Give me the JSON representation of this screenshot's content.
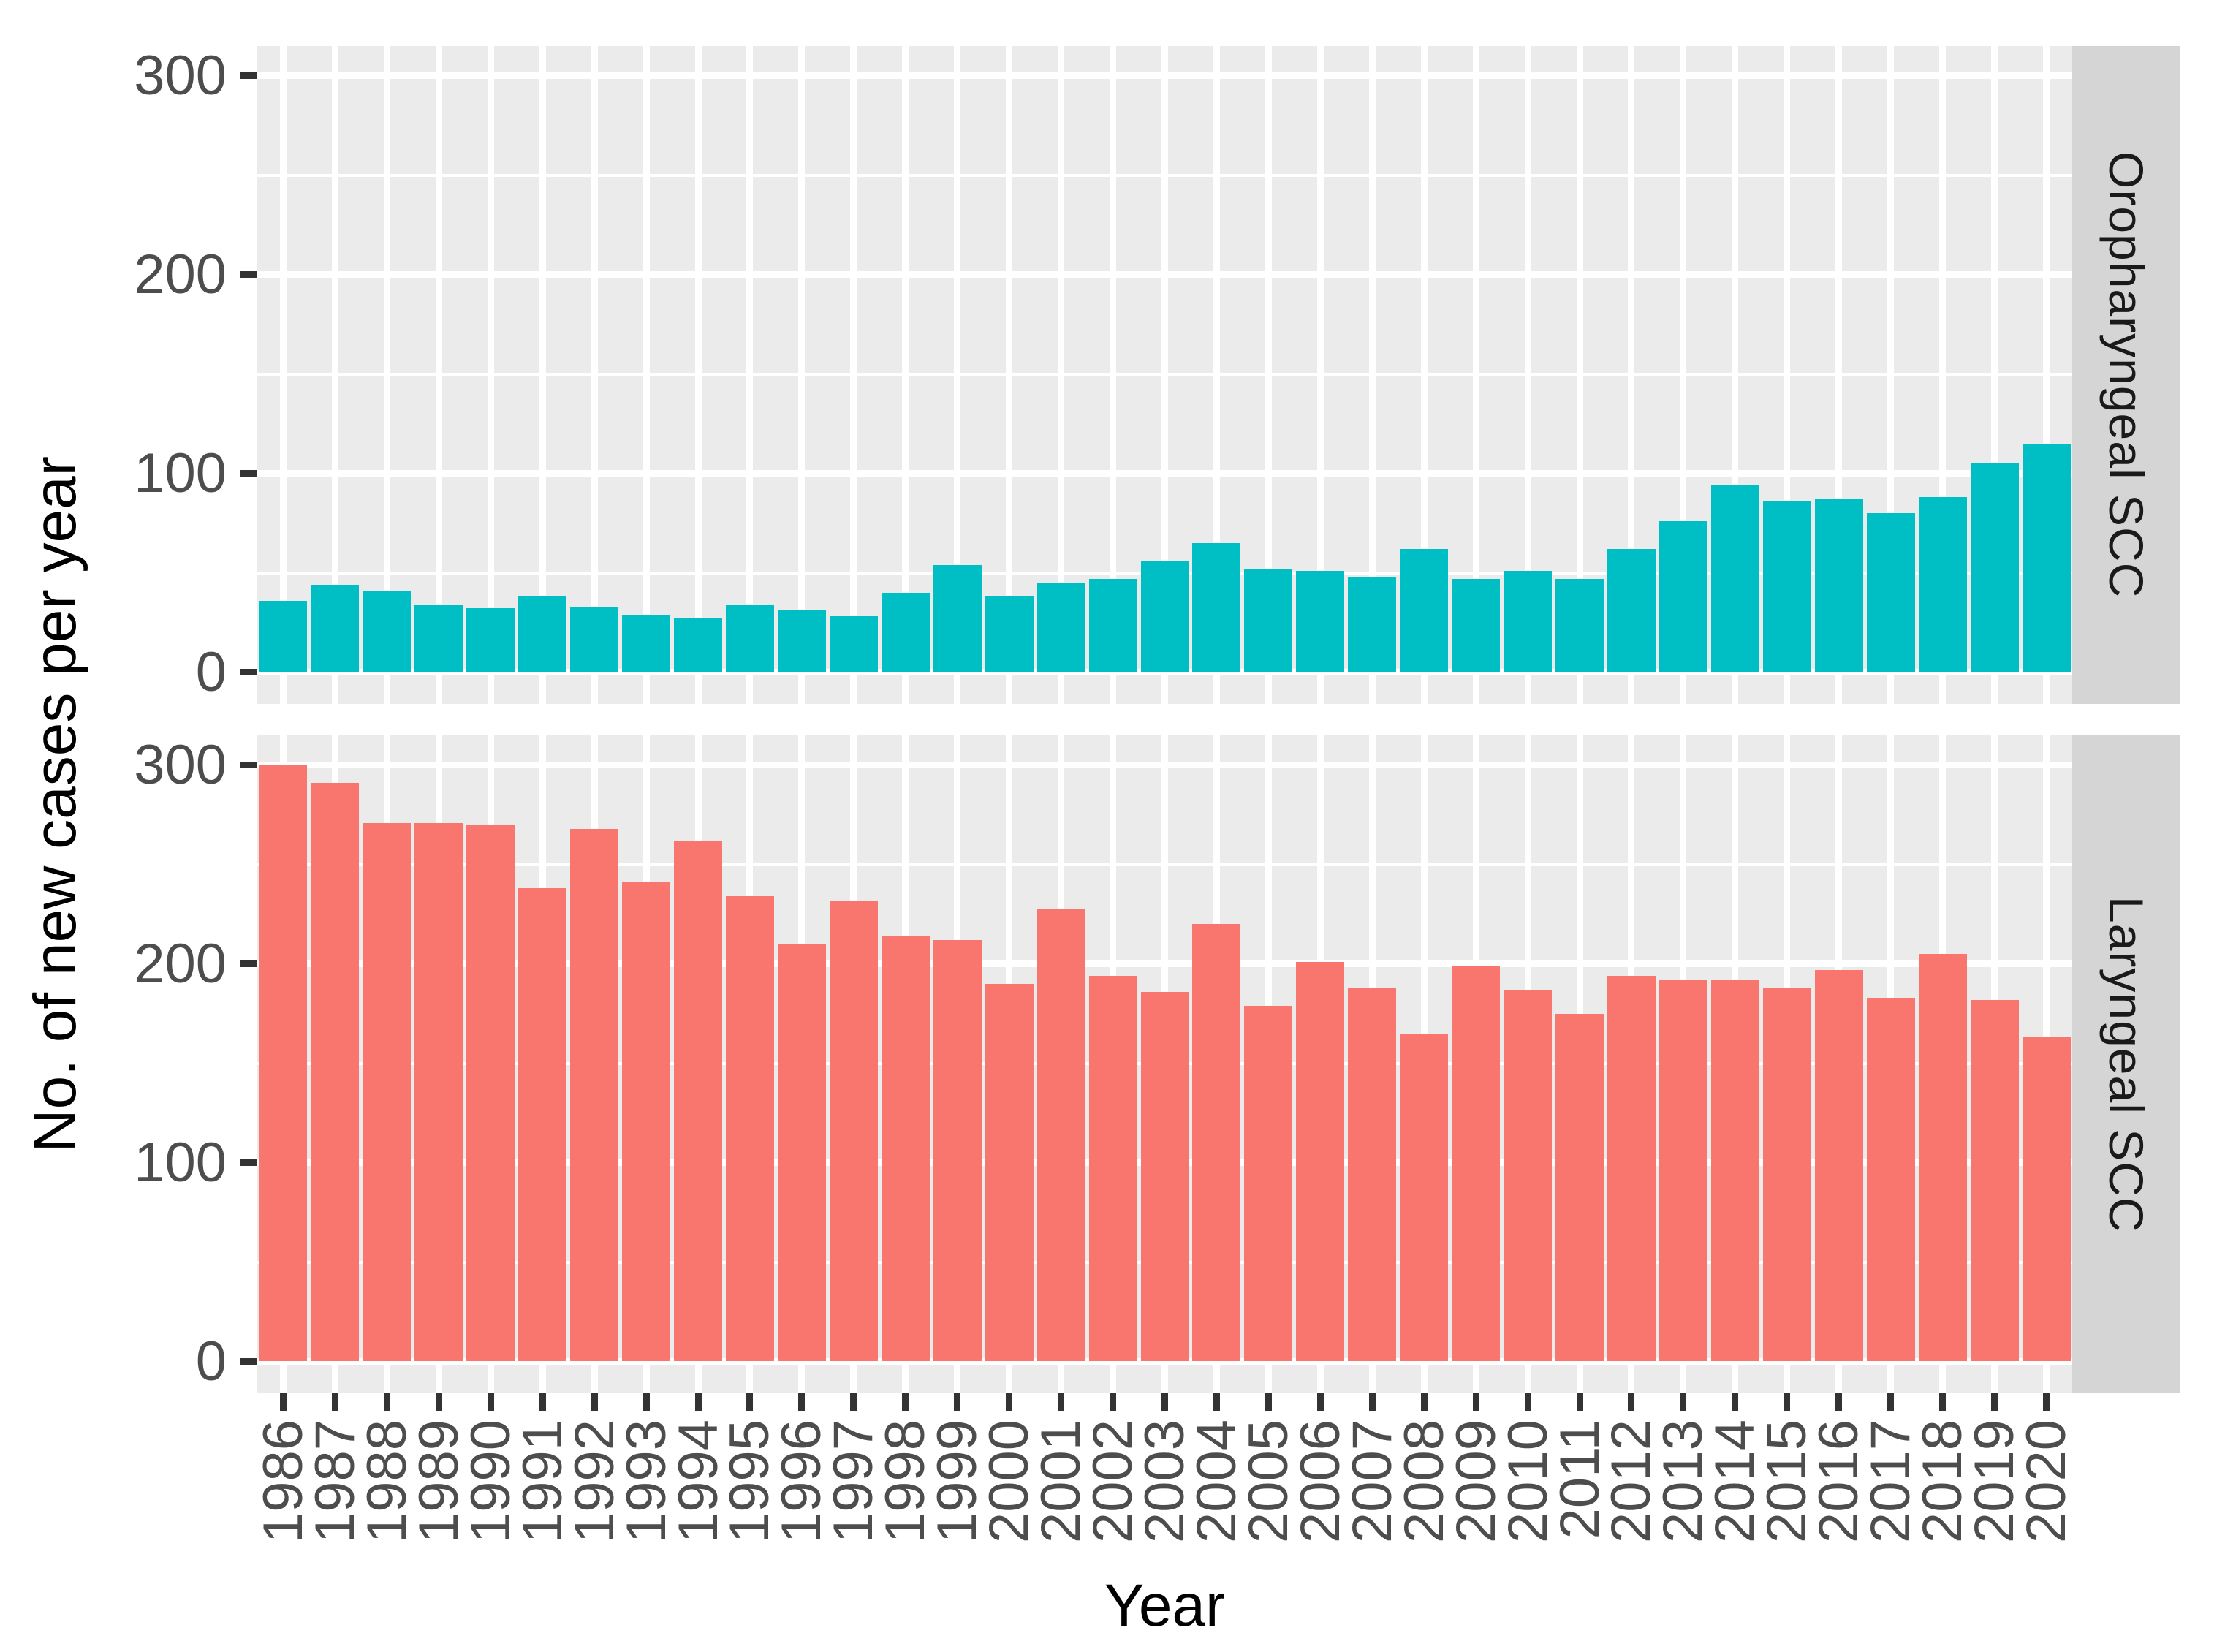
{
  "figure": {
    "y_axis_title": "No. of new cases per year",
    "x_axis_title": "Year",
    "y_tick_labels": [
      "0",
      "100",
      "200",
      "300"
    ],
    "facets": [
      {
        "label": "Oropharyngeal SCC"
      },
      {
        "label": "Laryngeal SCC"
      }
    ],
    "colors": {
      "oropharyngeal_bar": "#00BFC4",
      "laryngeal_bar": "#F8766D",
      "panel_background": "#EBEBEB",
      "strip_background": "#D5D5D5",
      "gridline": "#FFFFFF",
      "tick_mark": "#333333",
      "axis_text": "#4D4D4D",
      "title_text": "#000000"
    }
  },
  "chart_data": {
    "type": "bar",
    "title": "",
    "xlabel": "Year",
    "ylabel": "No. of new cases per year",
    "facet_layout": "two stacked panels sharing x axis, facet strips on right side",
    "grid": true,
    "legend": false,
    "ylim": [
      0,
      300
    ],
    "y_ticks": [
      0,
      100,
      200,
      300
    ],
    "y_minor_ticks": [
      50,
      150,
      250
    ],
    "categories": [
      "1986",
      "1987",
      "1988",
      "1989",
      "1990",
      "1991",
      "1992",
      "1993",
      "1994",
      "1995",
      "1996",
      "1997",
      "1998",
      "1999",
      "2000",
      "2001",
      "2002",
      "2003",
      "2004",
      "2005",
      "2006",
      "2007",
      "2008",
      "2009",
      "2010",
      "2011",
      "2012",
      "2013",
      "2014",
      "2015",
      "2016",
      "2017",
      "2018",
      "2019",
      "2020"
    ],
    "series": [
      {
        "name": "Oropharyngeal SCC",
        "color": "#00BFC4",
        "values": [
          36,
          44,
          41,
          34,
          32,
          38,
          33,
          29,
          27,
          34,
          31,
          28,
          40,
          54,
          38,
          45,
          47,
          56,
          65,
          52,
          51,
          48,
          62,
          47,
          51,
          47,
          62,
          76,
          94,
          86,
          87,
          80,
          88,
          105,
          115
        ]
      },
      {
        "name": "Laryngeal SCC",
        "color": "#F8766D",
        "values": [
          300,
          291,
          271,
          271,
          270,
          238,
          268,
          241,
          262,
          234,
          210,
          232,
          214,
          212,
          190,
          228,
          194,
          186,
          220,
          179,
          201,
          188,
          165,
          199,
          187,
          175,
          194,
          192,
          192,
          188,
          197,
          183,
          205,
          182,
          163
        ]
      }
    ]
  }
}
